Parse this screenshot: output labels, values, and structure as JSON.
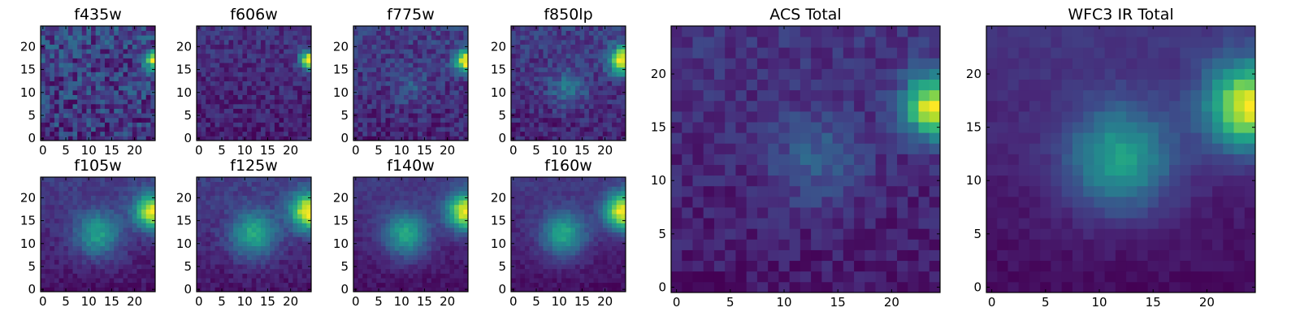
{
  "chart_data": [
    {
      "type": "heatmap",
      "title": "f435w",
      "x_ticks": [
        0,
        5,
        10,
        15,
        20
      ],
      "y_ticks": [
        0,
        5,
        10,
        15,
        20
      ],
      "xlim": [
        -0.5,
        24.5
      ],
      "ylim": [
        -0.5,
        24.5
      ],
      "grid_shape": [
        25,
        25
      ],
      "model": {
        "noise": 0.18,
        "base": 0.3,
        "grad": 0.05,
        "sources": [
          {
            "x": 24,
            "y": 17,
            "amp": 0.72,
            "sigma": 1.3
          }
        ],
        "seed": 11
      }
    },
    {
      "type": "heatmap",
      "title": "f606w",
      "x_ticks": [
        0,
        5,
        10,
        15,
        20
      ],
      "y_ticks": [
        0,
        5,
        10,
        15,
        20
      ],
      "xlim": [
        -0.5,
        24.5
      ],
      "ylim": [
        -0.5,
        24.5
      ],
      "grid_shape": [
        25,
        25
      ],
      "model": {
        "noise": 0.09,
        "base": 0.15,
        "grad": 0.06,
        "sources": [
          {
            "x": 24,
            "y": 17,
            "amp": 0.85,
            "sigma": 1.4
          }
        ],
        "seed": 23
      }
    },
    {
      "type": "heatmap",
      "title": "f775w",
      "x_ticks": [
        0,
        5,
        10,
        15,
        20
      ],
      "y_ticks": [
        0,
        5,
        10,
        15,
        20
      ],
      "xlim": [
        -0.5,
        24.5
      ],
      "ylim": [
        -0.5,
        24.5
      ],
      "grid_shape": [
        25,
        25
      ],
      "model": {
        "noise": 0.1,
        "base": 0.15,
        "grad": 0.08,
        "sources": [
          {
            "x": 24,
            "y": 17,
            "amp": 0.82,
            "sigma": 1.7
          },
          {
            "x": 12,
            "y": 11,
            "amp": 0.12,
            "sigma": 2.6
          }
        ],
        "seed": 37
      }
    },
    {
      "type": "heatmap",
      "title": "f850lp",
      "x_ticks": [
        0,
        5,
        10,
        15,
        20
      ],
      "y_ticks": [
        0,
        5,
        10,
        15,
        20
      ],
      "xlim": [
        -0.5,
        24.5
      ],
      "ylim": [
        -0.5,
        24.5
      ],
      "grid_shape": [
        25,
        25
      ],
      "model": {
        "noise": 0.09,
        "base": 0.17,
        "grad": 0.08,
        "sources": [
          {
            "x": 24,
            "y": 17,
            "amp": 0.78,
            "sigma": 2.1
          },
          {
            "x": 12,
            "y": 11,
            "amp": 0.22,
            "sigma": 2.8
          }
        ],
        "seed": 41
      }
    },
    {
      "type": "heatmap",
      "title": "f105w",
      "x_ticks": [
        0,
        5,
        10,
        15,
        20
      ],
      "y_ticks": [
        0,
        5,
        10,
        15,
        20
      ],
      "xlim": [
        -0.5,
        24.5
      ],
      "ylim": [
        -0.5,
        24.5
      ],
      "grid_shape": [
        25,
        25
      ],
      "model": {
        "noise": 0.05,
        "base": 0.12,
        "grad": 0.12,
        "sources": [
          {
            "x": 24,
            "y": 17,
            "amp": 0.75,
            "sigma": 2.8
          },
          {
            "x": 12,
            "y": 12,
            "amp": 0.4,
            "sigma": 3.5
          }
        ],
        "seed": 53
      }
    },
    {
      "type": "heatmap",
      "title": "f125w",
      "x_ticks": [
        0,
        5,
        10,
        15,
        20
      ],
      "y_ticks": [
        0,
        5,
        10,
        15,
        20
      ],
      "xlim": [
        -0.5,
        24.5
      ],
      "ylim": [
        -0.5,
        24.5
      ],
      "grid_shape": [
        25,
        25
      ],
      "model": {
        "noise": 0.05,
        "base": 0.12,
        "grad": 0.12,
        "sources": [
          {
            "x": 24,
            "y": 17,
            "amp": 0.75,
            "sigma": 2.8
          },
          {
            "x": 12,
            "y": 12,
            "amp": 0.42,
            "sigma": 3.5
          }
        ],
        "seed": 61
      }
    },
    {
      "type": "heatmap",
      "title": "f140w",
      "x_ticks": [
        0,
        5,
        10,
        15,
        20
      ],
      "y_ticks": [
        0,
        5,
        10,
        15,
        20
      ],
      "xlim": [
        -0.5,
        24.5
      ],
      "ylim": [
        -0.5,
        24.5
      ],
      "grid_shape": [
        25,
        25
      ],
      "model": {
        "noise": 0.04,
        "base": 0.1,
        "grad": 0.12,
        "sources": [
          {
            "x": 24,
            "y": 17,
            "amp": 0.78,
            "sigma": 2.8
          },
          {
            "x": 11,
            "y": 12,
            "amp": 0.44,
            "sigma": 3.4
          }
        ],
        "seed": 71
      }
    },
    {
      "type": "heatmap",
      "title": "f160w",
      "x_ticks": [
        0,
        5,
        10,
        15,
        20
      ],
      "y_ticks": [
        0,
        5,
        10,
        15,
        20
      ],
      "xlim": [
        -0.5,
        24.5
      ],
      "ylim": [
        -0.5,
        24.5
      ],
      "grid_shape": [
        25,
        25
      ],
      "model": {
        "noise": 0.04,
        "base": 0.08,
        "grad": 0.12,
        "sources": [
          {
            "x": 24,
            "y": 17,
            "amp": 0.82,
            "sigma": 2.8
          },
          {
            "x": 11,
            "y": 12,
            "amp": 0.46,
            "sigma": 3.4
          }
        ],
        "seed": 83
      }
    },
    {
      "type": "heatmap",
      "title": "ACS Total",
      "x_ticks": [
        0,
        5,
        10,
        15,
        20
      ],
      "y_ticks": [
        0,
        5,
        10,
        15,
        20
      ],
      "xlim": [
        -0.5,
        24.5
      ],
      "ylim": [
        -0.5,
        24.5
      ],
      "grid_shape": [
        25,
        25
      ],
      "model": {
        "noise": 0.07,
        "base": 0.2,
        "grad": 0.08,
        "sources": [
          {
            "x": 24,
            "y": 17,
            "amp": 0.8,
            "sigma": 2.0
          },
          {
            "x": 13,
            "y": 12,
            "amp": 0.18,
            "sigma": 3.0
          }
        ],
        "seed": 97
      }
    },
    {
      "type": "heatmap",
      "title": "WFC3 IR Total",
      "x_ticks": [
        0,
        5,
        10,
        15,
        20
      ],
      "y_ticks": [
        0,
        5,
        10,
        15,
        20
      ],
      "xlim": [
        -0.5,
        24.5
      ],
      "ylim": [
        -0.5,
        24.5
      ],
      "grid_shape": [
        25,
        25
      ],
      "model": {
        "noise": 0.03,
        "base": 0.1,
        "grad": 0.12,
        "sources": [
          {
            "x": 24,
            "y": 17,
            "amp": 0.8,
            "sigma": 2.8
          },
          {
            "x": 12,
            "y": 12,
            "amp": 0.45,
            "sigma": 3.4
          }
        ],
        "seed": 101
      }
    }
  ],
  "colormap": [
    "#440154",
    "#482878",
    "#3e4989",
    "#31688e",
    "#26828e",
    "#1f9e89",
    "#35b779",
    "#6ece58",
    "#b5de2b",
    "#fde725"
  ]
}
